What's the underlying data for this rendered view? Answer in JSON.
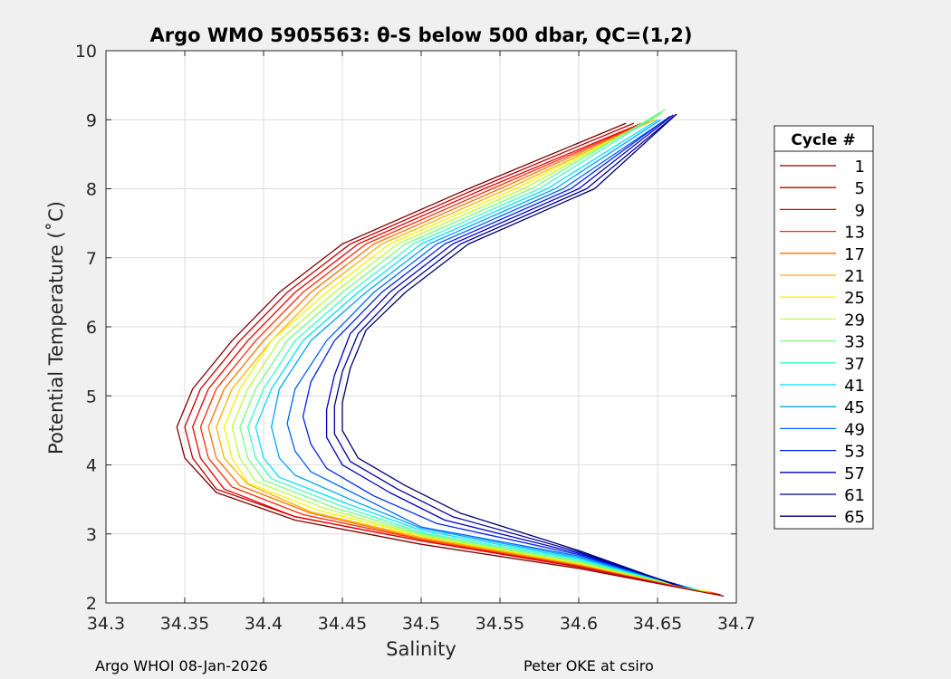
{
  "chart_data": {
    "type": "line",
    "title": "Argo WMO 5905563: θ-S below 500 dbar,  QC=(1,2)",
    "xlabel": "Salinity",
    "ylabel": "Potential Temperature (˚C)",
    "xlim": [
      34.3,
      34.7
    ],
    "ylim": [
      2,
      10
    ],
    "xticks": [
      "34.3",
      "34.35",
      "34.4",
      "34.45",
      "34.5",
      "34.55",
      "34.6",
      "34.65",
      "34.7"
    ],
    "yticks": [
      "2",
      "3",
      "4",
      "5",
      "6",
      "7",
      "8",
      "9",
      "10"
    ],
    "grid": true,
    "legend": {
      "title": "Cycle #",
      "placement": "right, outside",
      "entries": [
        "1",
        "5",
        "9",
        "13",
        "17",
        "21",
        "25",
        "29",
        "33",
        "37",
        "41",
        "45",
        "49",
        "53",
        "57",
        "61",
        "65"
      ]
    },
    "colors": [
      "#800000",
      "#bd0000",
      "#e60000",
      "#ff2a00",
      "#ff7000",
      "#ffb100",
      "#f5f500",
      "#b9ff3c",
      "#75ff80",
      "#3dffc0",
      "#00e1ff",
      "#00a5ff",
      "#0064ff",
      "#0024f0",
      "#0000c6",
      "#00009a",
      "#00006e"
    ],
    "series": [
      {
        "name": "1",
        "points": [
          [
            34.692,
            2.1
          ],
          [
            34.6,
            2.5
          ],
          [
            34.5,
            2.85
          ],
          [
            34.42,
            3.2
          ],
          [
            34.37,
            3.6
          ],
          [
            34.35,
            4.1
          ],
          [
            34.345,
            4.55
          ],
          [
            34.355,
            5.1
          ],
          [
            34.38,
            5.8
          ],
          [
            34.41,
            6.5
          ],
          [
            34.45,
            7.2
          ],
          [
            34.53,
            8.0
          ],
          [
            34.63,
            8.95
          ]
        ]
      },
      {
        "name": "5",
        "points": [
          [
            34.69,
            2.12
          ],
          [
            34.6,
            2.52
          ],
          [
            34.5,
            2.9
          ],
          [
            34.42,
            3.25
          ],
          [
            34.37,
            3.65
          ],
          [
            34.355,
            4.1
          ],
          [
            34.35,
            4.55
          ],
          [
            34.36,
            5.1
          ],
          [
            34.385,
            5.8
          ],
          [
            34.415,
            6.5
          ],
          [
            34.455,
            7.2
          ],
          [
            34.535,
            8.0
          ],
          [
            34.635,
            8.95
          ]
        ]
      },
      {
        "name": "9",
        "points": [
          [
            34.688,
            2.13
          ],
          [
            34.6,
            2.53
          ],
          [
            34.5,
            2.9
          ],
          [
            34.42,
            3.25
          ],
          [
            34.375,
            3.65
          ],
          [
            34.36,
            4.1
          ],
          [
            34.355,
            4.55
          ],
          [
            34.365,
            5.1
          ],
          [
            34.39,
            5.8
          ],
          [
            34.42,
            6.5
          ],
          [
            34.46,
            7.2
          ],
          [
            34.54,
            8.0
          ],
          [
            34.64,
            8.95
          ]
        ]
      },
      {
        "name": "13",
        "points": [
          [
            34.686,
            2.14
          ],
          [
            34.6,
            2.54
          ],
          [
            34.5,
            2.92
          ],
          [
            34.425,
            3.28
          ],
          [
            34.38,
            3.68
          ],
          [
            34.365,
            4.1
          ],
          [
            34.36,
            4.55
          ],
          [
            34.37,
            5.1
          ],
          [
            34.395,
            5.8
          ],
          [
            34.425,
            6.5
          ],
          [
            34.465,
            7.2
          ],
          [
            34.545,
            8.0
          ],
          [
            34.642,
            8.96
          ]
        ]
      },
      {
        "name": "17",
        "points": [
          [
            34.684,
            2.15
          ],
          [
            34.6,
            2.55
          ],
          [
            34.5,
            2.93
          ],
          [
            34.43,
            3.3
          ],
          [
            34.385,
            3.7
          ],
          [
            34.37,
            4.1
          ],
          [
            34.365,
            4.55
          ],
          [
            34.375,
            5.1
          ],
          [
            34.4,
            5.8
          ],
          [
            34.43,
            6.5
          ],
          [
            34.47,
            7.2
          ],
          [
            34.55,
            8.0
          ],
          [
            34.645,
            8.98
          ]
        ]
      },
      {
        "name": "21",
        "points": [
          [
            34.682,
            2.16
          ],
          [
            34.6,
            2.56
          ],
          [
            34.5,
            2.95
          ],
          [
            34.43,
            3.32
          ],
          [
            34.39,
            3.72
          ],
          [
            34.375,
            4.1
          ],
          [
            34.37,
            4.55
          ],
          [
            34.38,
            5.1
          ],
          [
            34.405,
            5.8
          ],
          [
            34.435,
            6.5
          ],
          [
            34.475,
            7.2
          ],
          [
            34.555,
            8.0
          ],
          [
            34.648,
            9.0
          ]
        ]
      },
      {
        "name": "25",
        "points": [
          [
            34.68,
            2.17
          ],
          [
            34.6,
            2.57
          ],
          [
            34.5,
            2.97
          ],
          [
            34.435,
            3.34
          ],
          [
            34.39,
            3.74
          ],
          [
            34.38,
            4.1
          ],
          [
            34.375,
            4.55
          ],
          [
            34.385,
            5.1
          ],
          [
            34.405,
            5.8
          ],
          [
            34.44,
            6.5
          ],
          [
            34.48,
            7.2
          ],
          [
            34.56,
            8.0
          ],
          [
            34.65,
            9.05
          ]
        ]
      },
      {
        "name": "29",
        "points": [
          [
            34.678,
            2.18
          ],
          [
            34.6,
            2.58
          ],
          [
            34.5,
            2.98
          ],
          [
            34.44,
            3.36
          ],
          [
            34.395,
            3.76
          ],
          [
            34.385,
            4.1
          ],
          [
            34.38,
            4.55
          ],
          [
            34.39,
            5.1
          ],
          [
            34.41,
            5.8
          ],
          [
            34.445,
            6.5
          ],
          [
            34.485,
            7.2
          ],
          [
            34.565,
            8.0
          ],
          [
            34.653,
            9.1
          ]
        ]
      },
      {
        "name": "33",
        "points": [
          [
            34.676,
            2.19
          ],
          [
            34.6,
            2.6
          ],
          [
            34.5,
            3.0
          ],
          [
            34.445,
            3.38
          ],
          [
            34.4,
            3.78
          ],
          [
            34.39,
            4.1
          ],
          [
            34.385,
            4.55
          ],
          [
            34.395,
            5.1
          ],
          [
            34.415,
            5.8
          ],
          [
            34.45,
            6.5
          ],
          [
            34.49,
            7.2
          ],
          [
            34.57,
            8.0
          ],
          [
            34.655,
            9.15
          ]
        ]
      },
      {
        "name": "37",
        "points": [
          [
            34.674,
            2.2
          ],
          [
            34.6,
            2.62
          ],
          [
            34.5,
            3.02
          ],
          [
            34.45,
            3.4
          ],
          [
            34.405,
            3.8
          ],
          [
            34.395,
            4.1
          ],
          [
            34.39,
            4.55
          ],
          [
            34.4,
            5.1
          ],
          [
            34.42,
            5.8
          ],
          [
            34.455,
            6.5
          ],
          [
            34.495,
            7.2
          ],
          [
            34.575,
            8.0
          ],
          [
            34.652,
            9.1
          ]
        ]
      },
      {
        "name": "41",
        "points": [
          [
            34.672,
            2.21
          ],
          [
            34.6,
            2.64
          ],
          [
            34.5,
            3.05
          ],
          [
            34.455,
            3.42
          ],
          [
            34.41,
            3.82
          ],
          [
            34.4,
            4.1
          ],
          [
            34.395,
            4.55
          ],
          [
            34.405,
            5.1
          ],
          [
            34.425,
            5.8
          ],
          [
            34.46,
            6.5
          ],
          [
            34.5,
            7.2
          ],
          [
            34.58,
            8.0
          ],
          [
            34.65,
            9.0
          ]
        ]
      },
      {
        "name": "45",
        "points": [
          [
            34.67,
            2.22
          ],
          [
            34.6,
            2.66
          ],
          [
            34.5,
            3.08
          ],
          [
            34.46,
            3.45
          ],
          [
            34.42,
            3.85
          ],
          [
            34.41,
            4.1
          ],
          [
            34.405,
            4.55
          ],
          [
            34.41,
            5.1
          ],
          [
            34.43,
            5.8
          ],
          [
            34.465,
            6.5
          ],
          [
            34.505,
            7.2
          ],
          [
            34.585,
            8.0
          ],
          [
            34.652,
            9.0
          ]
        ]
      },
      {
        "name": "49",
        "points": [
          [
            34.668,
            2.23
          ],
          [
            34.6,
            2.68
          ],
          [
            34.5,
            3.1
          ],
          [
            34.465,
            3.5
          ],
          [
            34.43,
            3.9
          ],
          [
            34.42,
            4.2
          ],
          [
            34.415,
            4.6
          ],
          [
            34.42,
            5.1
          ],
          [
            34.44,
            5.8
          ],
          [
            34.47,
            6.5
          ],
          [
            34.51,
            7.2
          ],
          [
            34.59,
            8.0
          ],
          [
            34.655,
            9.0
          ]
        ]
      },
      {
        "name": "53",
        "points": [
          [
            34.666,
            2.24
          ],
          [
            34.6,
            2.7
          ],
          [
            34.51,
            3.15
          ],
          [
            34.47,
            3.55
          ],
          [
            34.44,
            3.95
          ],
          [
            34.43,
            4.3
          ],
          [
            34.425,
            4.7
          ],
          [
            34.43,
            5.2
          ],
          [
            34.445,
            5.8
          ],
          [
            34.475,
            6.5
          ],
          [
            34.515,
            7.2
          ],
          [
            34.595,
            8.0
          ],
          [
            34.658,
            9.05
          ]
        ]
      },
      {
        "name": "57",
        "points": [
          [
            34.664,
            2.25
          ],
          [
            34.6,
            2.72
          ],
          [
            34.515,
            3.2
          ],
          [
            34.48,
            3.6
          ],
          [
            34.45,
            4.0
          ],
          [
            34.44,
            4.4
          ],
          [
            34.44,
            4.8
          ],
          [
            34.445,
            5.3
          ],
          [
            34.455,
            5.9
          ],
          [
            34.48,
            6.5
          ],
          [
            34.52,
            7.2
          ],
          [
            34.6,
            8.0
          ],
          [
            34.66,
            9.07
          ]
        ]
      },
      {
        "name": "61",
        "points": [
          [
            34.662,
            2.26
          ],
          [
            34.6,
            2.74
          ],
          [
            34.52,
            3.25
          ],
          [
            34.485,
            3.65
          ],
          [
            34.455,
            4.05
          ],
          [
            34.445,
            4.45
          ],
          [
            34.445,
            4.85
          ],
          [
            34.45,
            5.35
          ],
          [
            34.46,
            5.9
          ],
          [
            34.485,
            6.5
          ],
          [
            34.525,
            7.2
          ],
          [
            34.605,
            8.0
          ],
          [
            34.662,
            9.08
          ]
        ]
      },
      {
        "name": "65",
        "points": [
          [
            34.66,
            2.27
          ],
          [
            34.6,
            2.76
          ],
          [
            34.525,
            3.3
          ],
          [
            34.49,
            3.7
          ],
          [
            34.46,
            4.1
          ],
          [
            34.45,
            4.5
          ],
          [
            34.45,
            4.9
          ],
          [
            34.455,
            5.4
          ],
          [
            34.465,
            5.95
          ],
          [
            34.49,
            6.5
          ],
          [
            34.53,
            7.2
          ],
          [
            34.61,
            8.0
          ],
          [
            34.662,
            9.08
          ]
        ]
      }
    ]
  },
  "footer": {
    "left": "Argo WHOI 08-Jan-2026",
    "right": "Peter OKE at csiro"
  }
}
